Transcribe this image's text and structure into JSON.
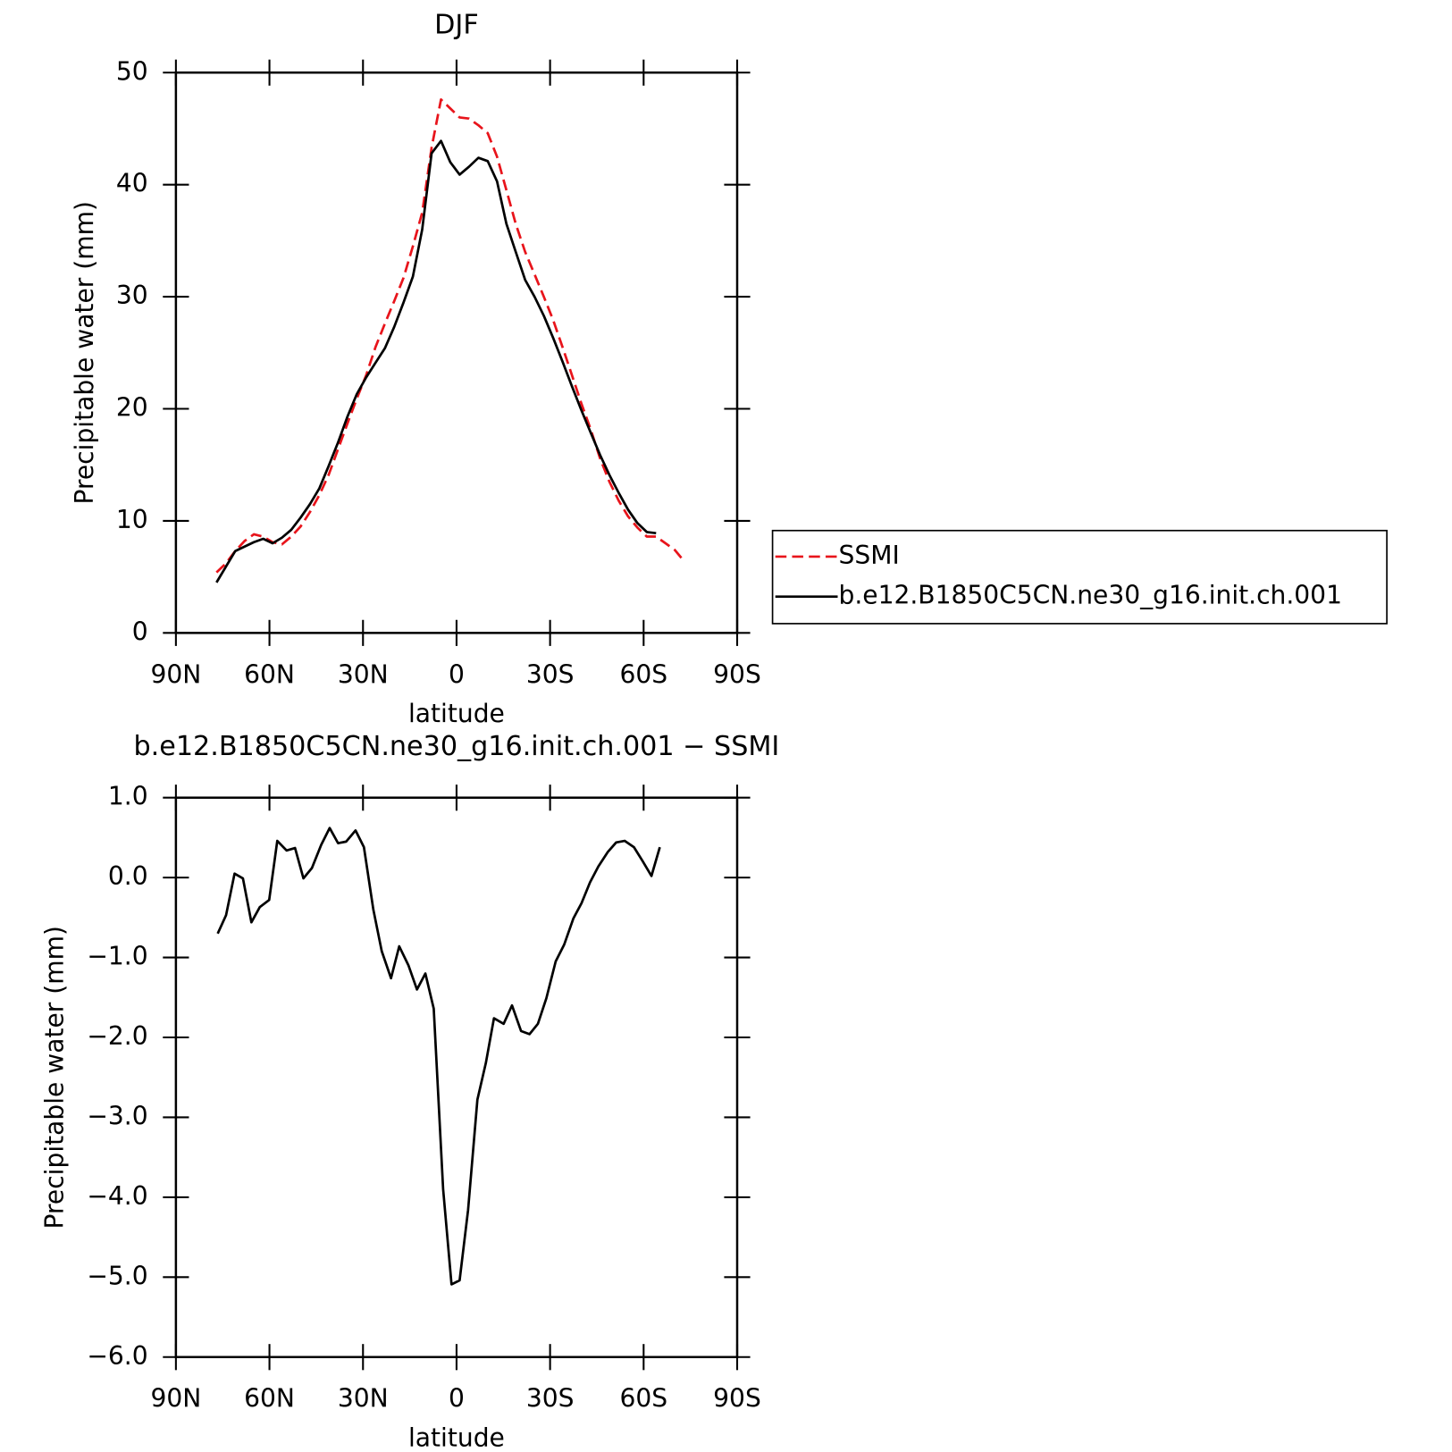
{
  "chart_data": [
    {
      "type": "line",
      "title": "DJF",
      "xlabel": "latitude",
      "ylabel": "Precipitable water (mm)",
      "xlim": [
        90,
        -90
      ],
      "xticks": [
        {
          "value": 90,
          "label": "90N"
        },
        {
          "value": 60,
          "label": "60N"
        },
        {
          "value": 30,
          "label": "30N"
        },
        0,
        {
          "value": -30,
          "label": "30S"
        },
        {
          "value": -60,
          "label": "60S"
        },
        {
          "value": -90,
          "label": "90S"
        }
      ],
      "ylim": [
        0,
        50
      ],
      "yticks": [
        0,
        10,
        20,
        30,
        40,
        50
      ],
      "legend": "right",
      "x": [
        77,
        74,
        71,
        68,
        65,
        62,
        59,
        56,
        53,
        50,
        47,
        44,
        41,
        38,
        35,
        32,
        29,
        26,
        23,
        20,
        17,
        14,
        11,
        8,
        5,
        2,
        -1,
        -4,
        -7,
        -10,
        -13,
        -16,
        -19,
        -22,
        -25,
        -28,
        -31,
        -34,
        -37,
        -40,
        -43,
        -46,
        -49,
        -52,
        -55,
        -58,
        -61,
        -64,
        -67,
        -70,
        -73
      ],
      "series": [
        {
          "name": "SSMI",
          "color": "#e8141b",
          "dashed": true,
          "values": [
            5.4,
            6.2,
            7.3,
            8.2,
            8.8,
            8.6,
            8.1,
            7.9,
            8.6,
            9.5,
            10.8,
            12.3,
            14.1,
            16.4,
            18.7,
            20.9,
            23.0,
            25.5,
            27.6,
            29.6,
            31.7,
            34.5,
            37.5,
            43.3,
            47.6,
            46.8,
            46.0,
            45.9,
            45.3,
            44.6,
            42.5,
            39.5,
            36.5,
            34.0,
            32.0,
            30.0,
            27.9,
            25.5,
            23.0,
            20.5,
            18.2,
            15.6,
            13.5,
            11.8,
            10.4,
            9.4,
            8.6,
            8.6,
            8.0,
            7.4,
            6.4
          ]
        },
        {
          "name": "b.e12.B1850C5CN.ne30_g16.init.ch.001",
          "color": "#000000",
          "dashed": false,
          "values": [
            4.5,
            5.9,
            7.3,
            7.7,
            8.1,
            8.4,
            8.0,
            8.5,
            9.2,
            10.3,
            11.5,
            12.9,
            14.9,
            17.0,
            19.3,
            21.3,
            22.8,
            24.1,
            25.4,
            27.3,
            29.5,
            31.8,
            36.0,
            42.8,
            43.9,
            42.0,
            40.9,
            41.6,
            42.4,
            42.1,
            40.3,
            36.5,
            34.0,
            31.5,
            30.0,
            28.3,
            26.3,
            24.2,
            22.0,
            19.9,
            17.9,
            15.9,
            14.1,
            12.5,
            11.0,
            9.8,
            9.0,
            8.9,
            null,
            null,
            null
          ]
        }
      ]
    },
    {
      "type": "line",
      "title": "b.e12.B1850C5CN.ne30_g16.init.ch.001 − SSMI",
      "xlabel": "latitude",
      "ylabel": "Precipitable water (mm)",
      "xlim": [
        90,
        -90
      ],
      "xticks": [
        {
          "value": 90,
          "label": "90N"
        },
        {
          "value": 60,
          "label": "60N"
        },
        {
          "value": 30,
          "label": "30N"
        },
        0,
        {
          "value": -30,
          "label": "30S"
        },
        {
          "value": -60,
          "label": "60S"
        },
        {
          "value": -90,
          "label": "90S"
        }
      ],
      "ylim": [
        -6,
        1
      ],
      "yticks": [
        {
          "value": 1,
          "label": "1.0"
        },
        {
          "value": 0,
          "label": "0.0"
        },
        {
          "value": -1,
          "label": "−1.0"
        },
        {
          "value": -2,
          "label": "−2.0"
        },
        {
          "value": -3,
          "label": "−3.0"
        },
        {
          "value": -4,
          "label": "−4.0"
        },
        {
          "value": -5,
          "label": "−5.0"
        },
        {
          "value": -6,
          "label": "−6.0"
        }
      ],
      "color": "#000000",
      "x": [
        76.6,
        73.9,
        71.2,
        68.5,
        65.8,
        63.1,
        60.1,
        57.5,
        54.5,
        51.8,
        49.1,
        46.4,
        43.4,
        40.7,
        38,
        35.4,
        32.4,
        29.7,
        26.7,
        24,
        21,
        18.4,
        15.4,
        12.7,
        10,
        7.3,
        4.3,
        1.6,
        -1,
        -3.7,
        -6.7,
        -9.4,
        -12,
        -15.1,
        -17.8,
        -20.7,
        -23.4,
        -26.1,
        -28.8,
        -31.8,
        -34.5,
        -37.5,
        -40.1,
        -42.8,
        -45.5,
        -48.5,
        -51.2,
        -53.9,
        -56.9,
        -59.6,
        -62.5,
        -65.2
      ],
      "values": [
        -0.7,
        -0.47,
        0.05,
        -0.01,
        -0.56,
        -0.37,
        -0.28,
        0.46,
        0.34,
        0.37,
        -0.01,
        0.12,
        0.41,
        0.62,
        0.43,
        0.45,
        0.59,
        0.38,
        -0.4,
        -0.92,
        -1.26,
        -0.86,
        -1.1,
        -1.4,
        -1.2,
        -1.64,
        -3.9,
        -5.09,
        -5.04,
        -4.16,
        -2.78,
        -2.32,
        -1.76,
        -1.83,
        -1.6,
        -1.92,
        -1.96,
        -1.83,
        -1.51,
        -1.05,
        -0.84,
        -0.51,
        -0.32,
        -0.06,
        0.14,
        0.32,
        0.44,
        0.46,
        0.38,
        0.21,
        0.02,
        0.38
      ]
    }
  ]
}
